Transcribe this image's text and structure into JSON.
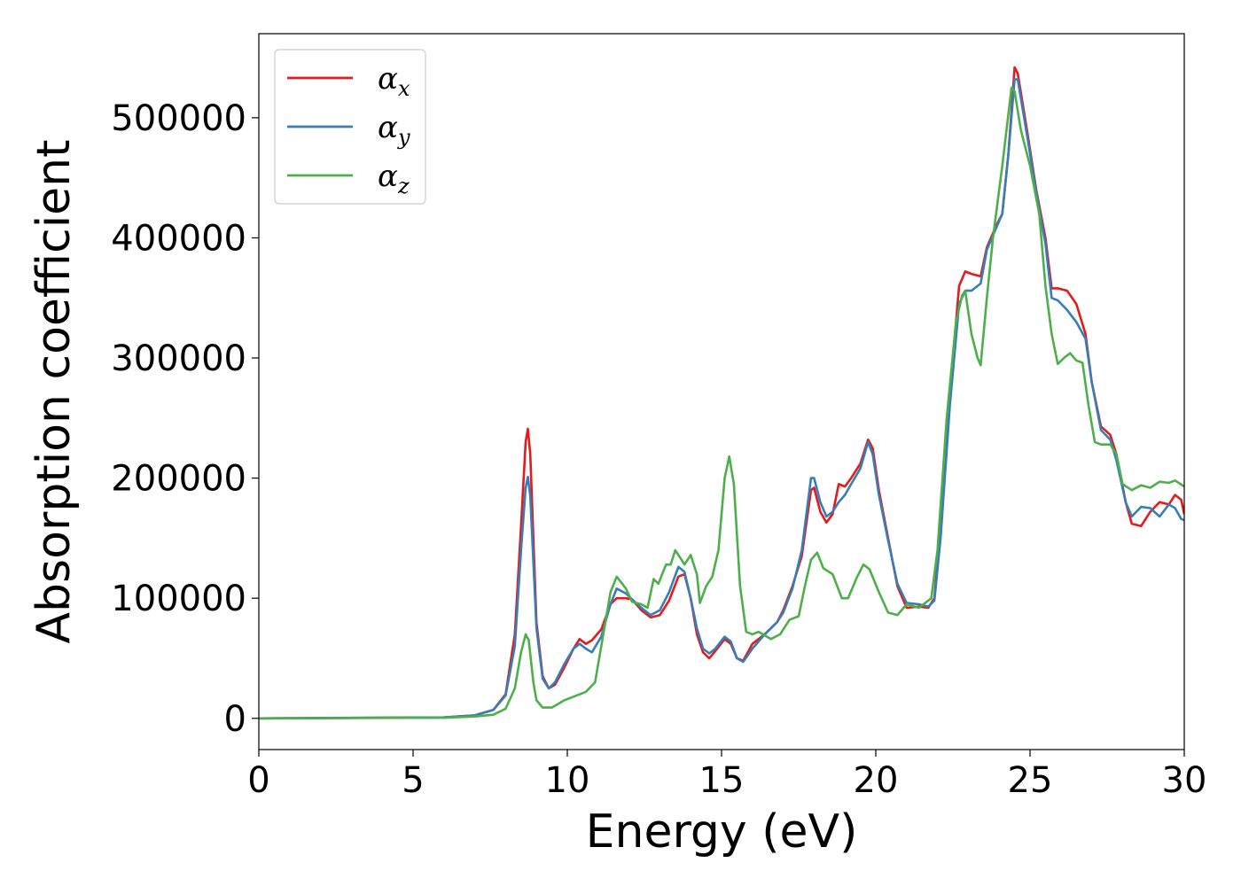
{
  "chart_data": {
    "type": "line",
    "title": "",
    "xlabel": "Energy (eV)",
    "ylabel": "Absorption coefficient",
    "xlim": [
      0,
      30
    ],
    "ylim": [
      -26000,
      570000
    ],
    "xticks": [
      0,
      5,
      10,
      15,
      20,
      25,
      30
    ],
    "yticks": [
      0,
      100000,
      200000,
      300000,
      400000,
      500000
    ],
    "grid": false,
    "legend": "top-left",
    "series": [
      {
        "name": "α",
        "subscript": "x",
        "color": "#e41a1c",
        "points": [
          [
            0,
            0
          ],
          [
            6,
            800
          ],
          [
            7,
            2500
          ],
          [
            7.6,
            7000
          ],
          [
            8,
            20000
          ],
          [
            8.3,
            70000
          ],
          [
            8.5,
            160000
          ],
          [
            8.65,
            230000
          ],
          [
            8.72,
            241000
          ],
          [
            8.8,
            220000
          ],
          [
            8.9,
            150000
          ],
          [
            9,
            80000
          ],
          [
            9.2,
            35000
          ],
          [
            9.4,
            25000
          ],
          [
            9.6,
            28000
          ],
          [
            9.9,
            42000
          ],
          [
            10.2,
            58000
          ],
          [
            10.4,
            66000
          ],
          [
            10.6,
            62000
          ],
          [
            10.8,
            65000
          ],
          [
            11.1,
            74000
          ],
          [
            11.4,
            95000
          ],
          [
            11.6,
            100000
          ],
          [
            11.9,
            100000
          ],
          [
            12.1,
            99000
          ],
          [
            12.4,
            90000
          ],
          [
            12.7,
            84000
          ],
          [
            13.0,
            86000
          ],
          [
            13.3,
            98000
          ],
          [
            13.6,
            118000
          ],
          [
            13.8,
            120000
          ],
          [
            14.0,
            100000
          ],
          [
            14.2,
            70000
          ],
          [
            14.4,
            55000
          ],
          [
            14.6,
            50000
          ],
          [
            14.8,
            56000
          ],
          [
            15.1,
            66000
          ],
          [
            15.3,
            62000
          ],
          [
            15.5,
            50000
          ],
          [
            15.7,
            48000
          ],
          [
            16.0,
            62000
          ],
          [
            16.4,
            70000
          ],
          [
            16.8,
            80000
          ],
          [
            17.0,
            90000
          ],
          [
            17.3,
            110000
          ],
          [
            17.6,
            135000
          ],
          [
            17.9,
            190000
          ],
          [
            18.0,
            192000
          ],
          [
            18.2,
            172000
          ],
          [
            18.4,
            163000
          ],
          [
            18.6,
            170000
          ],
          [
            18.8,
            195000
          ],
          [
            19.0,
            193000
          ],
          [
            19.2,
            200000
          ],
          [
            19.5,
            212000
          ],
          [
            19.75,
            232000
          ],
          [
            19.9,
            225000
          ],
          [
            20.1,
            190000
          ],
          [
            20.4,
            150000
          ],
          [
            20.7,
            110000
          ],
          [
            21.0,
            92000
          ],
          [
            21.4,
            93000
          ],
          [
            21.7,
            92000
          ],
          [
            21.9,
            100000
          ],
          [
            22.1,
            160000
          ],
          [
            22.4,
            270000
          ],
          [
            22.7,
            360000
          ],
          [
            22.9,
            372000
          ],
          [
            23.1,
            370000
          ],
          [
            23.4,
            368000
          ],
          [
            23.6,
            392000
          ],
          [
            23.9,
            410000
          ],
          [
            24.1,
            420000
          ],
          [
            24.3,
            470000
          ],
          [
            24.5,
            542000
          ],
          [
            24.6,
            537000
          ],
          [
            24.9,
            490000
          ],
          [
            25.2,
            440000
          ],
          [
            25.5,
            400000
          ],
          [
            25.7,
            358000
          ],
          [
            25.9,
            358000
          ],
          [
            26.2,
            356000
          ],
          [
            26.5,
            345000
          ],
          [
            26.8,
            320000
          ],
          [
            27.0,
            280000
          ],
          [
            27.3,
            243000
          ],
          [
            27.6,
            236000
          ],
          [
            27.8,
            220000
          ],
          [
            28.1,
            180000
          ],
          [
            28.3,
            162000
          ],
          [
            28.6,
            160000
          ],
          [
            28.9,
            172000
          ],
          [
            29.2,
            180000
          ],
          [
            29.5,
            178000
          ],
          [
            29.7,
            186000
          ],
          [
            29.9,
            182000
          ],
          [
            30,
            170000
          ]
        ]
      },
      {
        "name": "α",
        "subscript": "y",
        "color": "#377eb8",
        "points": [
          [
            0,
            0
          ],
          [
            6,
            800
          ],
          [
            7,
            2500
          ],
          [
            7.6,
            7000
          ],
          [
            8,
            19000
          ],
          [
            8.3,
            60000
          ],
          [
            8.5,
            140000
          ],
          [
            8.65,
            192000
          ],
          [
            8.72,
            201000
          ],
          [
            8.8,
            185000
          ],
          [
            8.9,
            130000
          ],
          [
            9,
            75000
          ],
          [
            9.2,
            33000
          ],
          [
            9.4,
            25000
          ],
          [
            9.6,
            30000
          ],
          [
            9.9,
            45000
          ],
          [
            10.2,
            58000
          ],
          [
            10.4,
            62000
          ],
          [
            10.6,
            58000
          ],
          [
            10.8,
            55000
          ],
          [
            11.1,
            68000
          ],
          [
            11.4,
            95000
          ],
          [
            11.6,
            108000
          ],
          [
            11.9,
            104000
          ],
          [
            12.1,
            99000
          ],
          [
            12.4,
            92000
          ],
          [
            12.7,
            86000
          ],
          [
            13.0,
            90000
          ],
          [
            13.3,
            105000
          ],
          [
            13.6,
            126000
          ],
          [
            13.8,
            122000
          ],
          [
            14.0,
            100000
          ],
          [
            14.2,
            75000
          ],
          [
            14.4,
            58000
          ],
          [
            14.6,
            54000
          ],
          [
            14.8,
            58000
          ],
          [
            15.1,
            68000
          ],
          [
            15.3,
            64000
          ],
          [
            15.5,
            50000
          ],
          [
            15.7,
            47000
          ],
          [
            16.0,
            58000
          ],
          [
            16.4,
            70000
          ],
          [
            16.8,
            80000
          ],
          [
            17.0,
            88000
          ],
          [
            17.3,
            108000
          ],
          [
            17.6,
            140000
          ],
          [
            17.9,
            200000
          ],
          [
            18.0,
            200000
          ],
          [
            18.2,
            180000
          ],
          [
            18.4,
            168000
          ],
          [
            18.6,
            172000
          ],
          [
            18.8,
            180000
          ],
          [
            19.0,
            186000
          ],
          [
            19.2,
            195000
          ],
          [
            19.5,
            208000
          ],
          [
            19.75,
            230000
          ],
          [
            19.9,
            220000
          ],
          [
            20.1,
            186000
          ],
          [
            20.4,
            148000
          ],
          [
            20.7,
            112000
          ],
          [
            21.0,
            96000
          ],
          [
            21.4,
            95000
          ],
          [
            21.7,
            93000
          ],
          [
            21.9,
            98000
          ],
          [
            22.1,
            150000
          ],
          [
            22.4,
            260000
          ],
          [
            22.7,
            345000
          ],
          [
            22.9,
            356000
          ],
          [
            23.1,
            356000
          ],
          [
            23.4,
            362000
          ],
          [
            23.6,
            390000
          ],
          [
            23.9,
            408000
          ],
          [
            24.1,
            420000
          ],
          [
            24.3,
            470000
          ],
          [
            24.5,
            532000
          ],
          [
            24.6,
            532000
          ],
          [
            24.9,
            486000
          ],
          [
            25.2,
            438000
          ],
          [
            25.5,
            395000
          ],
          [
            25.7,
            350000
          ],
          [
            25.9,
            348000
          ],
          [
            26.2,
            340000
          ],
          [
            26.5,
            330000
          ],
          [
            26.8,
            316000
          ],
          [
            27.0,
            280000
          ],
          [
            27.3,
            240000
          ],
          [
            27.6,
            232000
          ],
          [
            27.8,
            215000
          ],
          [
            28.1,
            180000
          ],
          [
            28.3,
            168000
          ],
          [
            28.6,
            176000
          ],
          [
            28.9,
            175000
          ],
          [
            29.2,
            168000
          ],
          [
            29.5,
            178000
          ],
          [
            29.7,
            175000
          ],
          [
            29.9,
            166000
          ],
          [
            30,
            165000
          ]
        ]
      },
      {
        "name": "α",
        "subscript": "z",
        "color": "#4daf4a",
        "points": [
          [
            0,
            0
          ],
          [
            6,
            500
          ],
          [
            7,
            1500
          ],
          [
            7.6,
            3000
          ],
          [
            8,
            8000
          ],
          [
            8.3,
            25000
          ],
          [
            8.5,
            55000
          ],
          [
            8.65,
            70000
          ],
          [
            8.75,
            65000
          ],
          [
            8.9,
            30000
          ],
          [
            9,
            15000
          ],
          [
            9.2,
            9000
          ],
          [
            9.5,
            9000
          ],
          [
            9.9,
            15000
          ],
          [
            10.2,
            18000
          ],
          [
            10.6,
            22000
          ],
          [
            10.9,
            30000
          ],
          [
            11.1,
            60000
          ],
          [
            11.4,
            105000
          ],
          [
            11.6,
            118000
          ],
          [
            11.9,
            108000
          ],
          [
            12.1,
            97000
          ],
          [
            12.4,
            95000
          ],
          [
            12.6,
            92000
          ],
          [
            12.8,
            116000
          ],
          [
            12.95,
            112000
          ],
          [
            13.2,
            128000
          ],
          [
            13.35,
            128000
          ],
          [
            13.5,
            140000
          ],
          [
            13.7,
            132000
          ],
          [
            13.8,
            128000
          ],
          [
            14.0,
            136000
          ],
          [
            14.2,
            120000
          ],
          [
            14.3,
            96000
          ],
          [
            14.5,
            110000
          ],
          [
            14.7,
            118000
          ],
          [
            14.9,
            140000
          ],
          [
            15.1,
            200000
          ],
          [
            15.25,
            218000
          ],
          [
            15.4,
            195000
          ],
          [
            15.6,
            110000
          ],
          [
            15.8,
            72000
          ],
          [
            16.0,
            70000
          ],
          [
            16.2,
            72000
          ],
          [
            16.6,
            66000
          ],
          [
            16.9,
            70000
          ],
          [
            17.2,
            82000
          ],
          [
            17.5,
            85000
          ],
          [
            17.7,
            110000
          ],
          [
            17.9,
            132000
          ],
          [
            18.1,
            138000
          ],
          [
            18.3,
            125000
          ],
          [
            18.6,
            120000
          ],
          [
            18.9,
            100000
          ],
          [
            19.1,
            100000
          ],
          [
            19.4,
            118000
          ],
          [
            19.6,
            128000
          ],
          [
            19.8,
            124000
          ],
          [
            20.1,
            105000
          ],
          [
            20.4,
            88000
          ],
          [
            20.7,
            86000
          ],
          [
            21.0,
            95000
          ],
          [
            21.4,
            92000
          ],
          [
            21.8,
            100000
          ],
          [
            22.0,
            140000
          ],
          [
            22.3,
            250000
          ],
          [
            22.6,
            330000
          ],
          [
            22.8,
            352000
          ],
          [
            22.9,
            356000
          ],
          [
            23.1,
            320000
          ],
          [
            23.3,
            300000
          ],
          [
            23.4,
            294000
          ],
          [
            23.6,
            350000
          ],
          [
            23.8,
            400000
          ],
          [
            24.1,
            460000
          ],
          [
            24.4,
            525000
          ],
          [
            24.5,
            522000
          ],
          [
            24.7,
            490000
          ],
          [
            25.0,
            460000
          ],
          [
            25.3,
            420000
          ],
          [
            25.5,
            360000
          ],
          [
            25.7,
            320000
          ],
          [
            25.9,
            295000
          ],
          [
            26.1,
            300000
          ],
          [
            26.3,
            304000
          ],
          [
            26.5,
            298000
          ],
          [
            26.7,
            296000
          ],
          [
            26.9,
            260000
          ],
          [
            27.1,
            230000
          ],
          [
            27.3,
            228000
          ],
          [
            27.6,
            228000
          ],
          [
            27.8,
            220000
          ],
          [
            28.0,
            195000
          ],
          [
            28.3,
            190000
          ],
          [
            28.6,
            194000
          ],
          [
            28.9,
            192000
          ],
          [
            29.2,
            197000
          ],
          [
            29.5,
            196000
          ],
          [
            29.7,
            198000
          ],
          [
            30,
            193000
          ]
        ]
      }
    ]
  }
}
